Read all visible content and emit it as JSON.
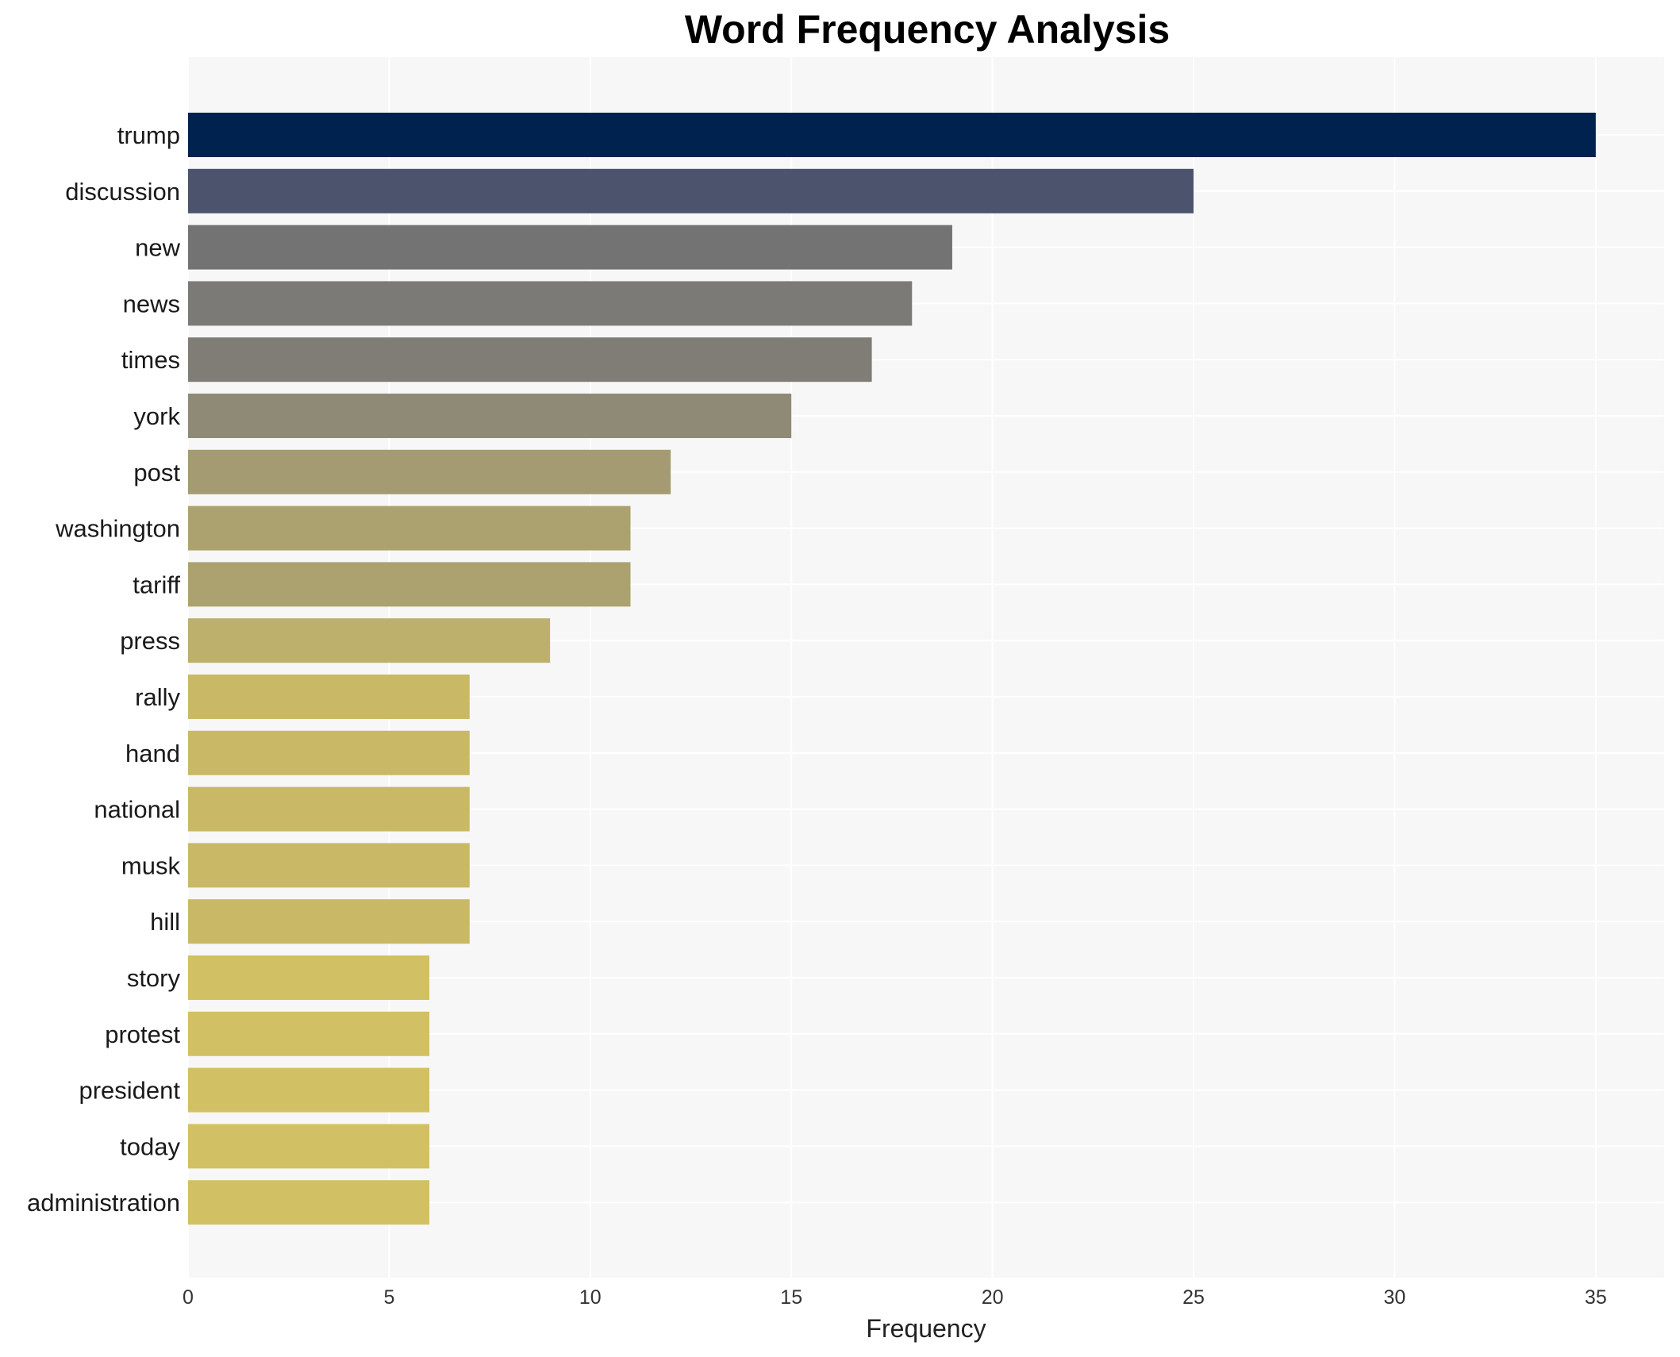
{
  "chart_data": {
    "type": "bar",
    "orientation": "horizontal",
    "title": "Word Frequency Analysis",
    "xlabel": "Frequency",
    "ylabel": "",
    "xlim": [
      0,
      36.7
    ],
    "xticks": [
      0,
      5,
      10,
      15,
      20,
      25,
      30,
      35
    ],
    "grid": true,
    "categories": [
      "trump",
      "discussion",
      "new",
      "news",
      "times",
      "york",
      "post",
      "washington",
      "tariff",
      "press",
      "rally",
      "hand",
      "national",
      "musk",
      "hill",
      "story",
      "protest",
      "president",
      "today",
      "administration"
    ],
    "values": [
      35,
      25,
      19,
      18,
      17,
      15,
      12,
      11,
      11,
      9,
      7,
      7,
      7,
      7,
      7,
      6,
      6,
      6,
      6,
      6
    ],
    "colors": [
      "#00224e",
      "#4b546c",
      "#737373",
      "#7b7a76",
      "#807d76",
      "#8f8a76",
      "#a49b73",
      "#aca270",
      "#aca270",
      "#bdaf6c",
      "#c9b966",
      "#c9b966",
      "#c9b966",
      "#c9b966",
      "#c9b966",
      "#d2c164",
      "#d2c164",
      "#d2c164",
      "#d2c164",
      "#d2c164"
    ]
  }
}
